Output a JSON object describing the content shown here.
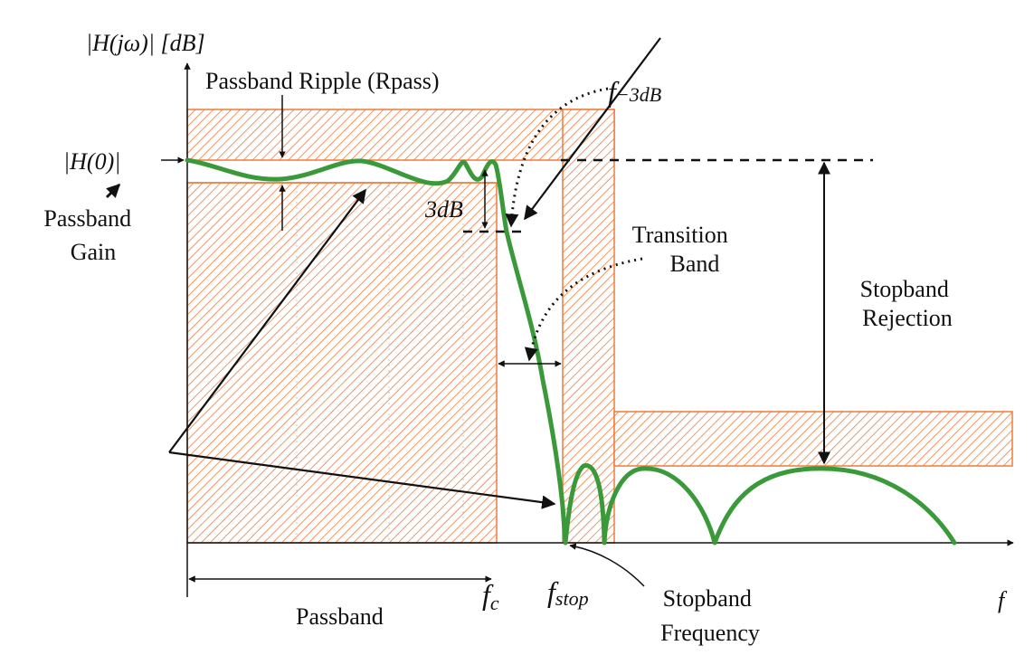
{
  "diagram": {
    "y_axis_label": "|H(jω)| [dB]",
    "x_axis_label": "f",
    "h0_label": "|H(0)|",
    "passband_gain": [
      "Passband",
      "Gain"
    ],
    "passband_ripple": "Passband Ripple (Rpass)",
    "f3db": {
      "f": "f",
      "sub": "−3dB"
    },
    "three_db": "3dB",
    "transition_band": [
      "Transition",
      "Band"
    ],
    "stopband_rejection": [
      "Stopband",
      "Rejection"
    ],
    "passband": "Passband",
    "fc": {
      "f": "f",
      "sub": "c"
    },
    "fstop": {
      "f": "f",
      "sub": "stop"
    },
    "stopband_frequency": [
      "Stopband",
      "Frequency"
    ]
  },
  "colors": {
    "hatch": "#f07a3a",
    "response_curve": "#3a9a3a",
    "ink": "#111111"
  }
}
